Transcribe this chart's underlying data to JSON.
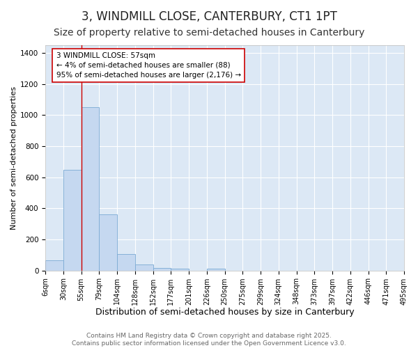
{
  "title": "3, WINDMILL CLOSE, CANTERBURY, CT1 1PT",
  "subtitle": "Size of property relative to semi-detached houses in Canterbury",
  "xlabel": "Distribution of semi-detached houses by size in Canterbury",
  "ylabel": "Number of semi-detached properties",
  "bin_labels": [
    "6sqm",
    "30sqm",
    "55sqm",
    "79sqm",
    "104sqm",
    "128sqm",
    "152sqm",
    "177sqm",
    "201sqm",
    "226sqm",
    "250sqm",
    "275sqm",
    "299sqm",
    "324sqm",
    "348sqm",
    "373sqm",
    "397sqm",
    "422sqm",
    "446sqm",
    "471sqm",
    "495sqm"
  ],
  "bar_heights": [
    65,
    650,
    1050,
    360,
    105,
    40,
    15,
    10,
    0,
    10,
    0,
    0,
    0,
    0,
    0,
    0,
    0,
    0,
    0,
    0
  ],
  "bar_color": "#c5d8f0",
  "bar_edge_color": "#7baad4",
  "property_line_x": 2.0,
  "property_line_color": "#cc0000",
  "annotation_text": "3 WINDMILL CLOSE: 57sqm\n← 4% of semi-detached houses are smaller (88)\n95% of semi-detached houses are larger (2,176) →",
  "ylim": [
    0,
    1450
  ],
  "yticks": [
    0,
    200,
    400,
    600,
    800,
    1000,
    1200,
    1400
  ],
  "fig_background_color": "#ffffff",
  "ax_background_color": "#dce8f5",
  "grid_color": "#ffffff",
  "footer_text": "Contains HM Land Registry data © Crown copyright and database right 2025.\nContains public sector information licensed under the Open Government Licence v3.0.",
  "title_fontsize": 12,
  "subtitle_fontsize": 10,
  "xlabel_fontsize": 9,
  "ylabel_fontsize": 8,
  "annotation_fontsize": 7.5,
  "footer_fontsize": 6.5,
  "tick_fontsize": 7
}
